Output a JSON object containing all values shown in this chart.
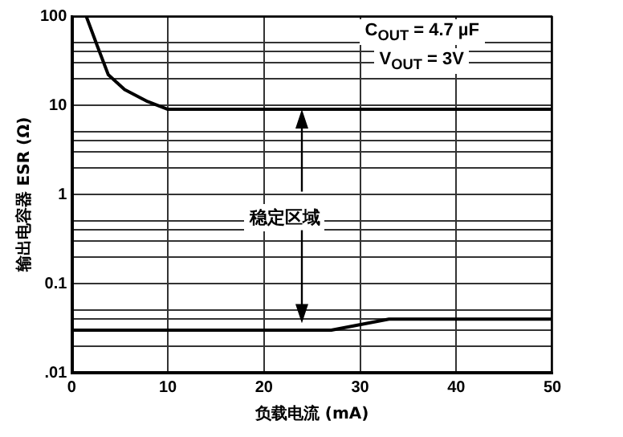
{
  "chart_data": {
    "type": "line",
    "xlabel": "负载电流 (mA)",
    "ylabel": "输出电容器 ESR (Ω)",
    "xlim": [
      0,
      50
    ],
    "xticks": [
      0,
      10,
      20,
      30,
      40,
      50
    ],
    "ylim": [
      0.01,
      100
    ],
    "yticks": [
      {
        "value": 0.01,
        "label": ".01"
      },
      {
        "value": 0.02,
        "label": null
      },
      {
        "value": 0.03,
        "label": null
      },
      {
        "value": 0.04,
        "label": null
      },
      {
        "value": 0.05,
        "label": null
      },
      0.1,
      {
        "value": 0.2,
        "label": null
      },
      {
        "value": 0.3,
        "label": null
      },
      {
        "value": 0.4,
        "label": null
      },
      {
        "value": 0.5,
        "label": null
      },
      1,
      {
        "value": 2,
        "label": null
      },
      {
        "value": 3,
        "label": null
      },
      {
        "value": 4,
        "label": null
      },
      {
        "value": 5,
        "label": null
      },
      10,
      {
        "value": 20,
        "label": null
      },
      {
        "value": 30,
        "label": null
      },
      {
        "value": 40,
        "label": null
      },
      {
        "value": 50,
        "label": null
      },
      100
    ],
    "log": "y",
    "grid": true,
    "legend": false,
    "marker": "none",
    "line_style": "solid",
    "series": [
      {
        "color": "#000000",
        "x": [
          1.5,
          2.7,
          3.8,
          5.5,
          7.9,
          10,
          50
        ],
        "values": [
          100,
          45,
          22,
          15,
          11,
          9,
          9
        ]
      },
      {
        "color": "#000000",
        "x": [
          0,
          27,
          33,
          50
        ],
        "values": [
          0.03,
          0.03,
          0.04,
          0.04
        ]
      }
    ],
    "annotations": [
      "C$_{OUT}$ = 4.7 µF",
      "V$_{OUT}$ = 3V",
      "稳定区域"
    ]
  }
}
